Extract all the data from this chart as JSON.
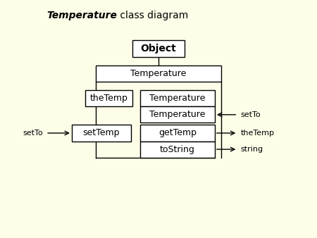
{
  "title_italic": "Temperature",
  "title_rest": " class diagram",
  "bg_color": "#FDFDE8",
  "box_fc": "#FFFFFF",
  "box_ec": "#000000",
  "lc": "#000000",
  "fs": 9,
  "boxes": {
    "Object": [
      0.415,
      0.815,
      0.17,
      0.075
    ],
    "Temp_class": [
      0.295,
      0.7,
      0.41,
      0.075
    ],
    "theTemp": [
      0.26,
      0.585,
      0.155,
      0.075
    ],
    "Temp_field": [
      0.44,
      0.585,
      0.245,
      0.075
    ],
    "Temp_param": [
      0.44,
      0.51,
      0.245,
      0.075
    ],
    "setTemp": [
      0.215,
      0.425,
      0.195,
      0.075
    ],
    "getTemp": [
      0.44,
      0.425,
      0.245,
      0.075
    ],
    "toString": [
      0.44,
      0.35,
      0.245,
      0.075
    ]
  },
  "labels": {
    "Object": "Object",
    "Temp_class": "Temperature",
    "theTemp": "theTemp",
    "Temp_field": "Temperature",
    "Temp_param": "Temperature",
    "setTemp": "setTemp",
    "getTemp": "getTemp",
    "toString": "toString"
  }
}
